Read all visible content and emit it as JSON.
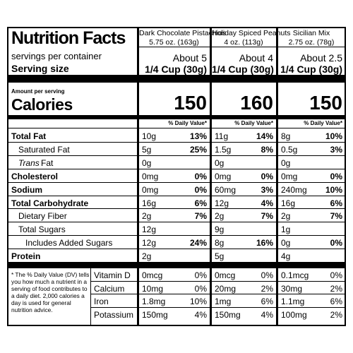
{
  "title": "Nutrition Facts",
  "servings_label": "servings per container",
  "serving_size_label": "Serving size",
  "amount_label": "Amount per serving",
  "calories_label": "Calories",
  "dv_header": "% Daily Value*",
  "products": [
    {
      "name": "Dark Chocolate Pistachios",
      "weight": "5.75 oz. (163g)",
      "servings": "About 5",
      "serving_size": "1/4 Cup (30g)",
      "calories": 150
    },
    {
      "name": "Holiday Spiced Peanuts",
      "weight": "4 oz. (113g)",
      "servings": "About 4",
      "serving_size": "1/4 Cup (30g)",
      "calories": 160
    },
    {
      "name": "Sicilian Mix",
      "weight": "2.75 oz. (78g)",
      "servings": "About 2.5",
      "serving_size": "1/4 Cup (30g)",
      "calories": 150
    }
  ],
  "nutrients": [
    {
      "label": "Total Fat",
      "bold": true,
      "indent": 0,
      "values": [
        [
          "10g",
          "13%"
        ],
        [
          "11g",
          "14%"
        ],
        [
          "8g",
          "10%"
        ]
      ]
    },
    {
      "label": "Saturated Fat",
      "bold": false,
      "indent": 1,
      "values": [
        [
          "5g",
          "25%"
        ],
        [
          "1.5g",
          "8%"
        ],
        [
          "0.5g",
          "3%"
        ]
      ]
    },
    {
      "prefix": "Trans",
      "label": "Fat",
      "bold": false,
      "indent": 1,
      "values": [
        [
          "0g"
        ],
        [
          "0g"
        ],
        [
          "0g"
        ]
      ]
    },
    {
      "label": "Cholesterol",
      "bold": true,
      "indent": 0,
      "values": [
        [
          "0mg",
          "0%"
        ],
        [
          "0mg",
          "0%"
        ],
        [
          "0mg",
          "0%"
        ]
      ]
    },
    {
      "label": "Sodium",
      "bold": true,
      "indent": 0,
      "values": [
        [
          "0mg",
          "0%"
        ],
        [
          "60mg",
          "3%"
        ],
        [
          "240mg",
          "10%"
        ]
      ]
    },
    {
      "label": "Total Carbohydrate",
      "bold": true,
      "indent": 0,
      "values": [
        [
          "16g",
          "6%"
        ],
        [
          "12g",
          "4%"
        ],
        [
          "16g",
          "6%"
        ]
      ]
    },
    {
      "label": "Dietary Fiber",
      "bold": false,
      "indent": 1,
      "values": [
        [
          "2g",
          "7%"
        ],
        [
          "2g",
          "7%"
        ],
        [
          "2g",
          "7%"
        ]
      ]
    },
    {
      "label": "Total Sugars",
      "bold": false,
      "indent": 1,
      "values": [
        [
          "12g"
        ],
        [
          "9g"
        ],
        [
          "1g"
        ]
      ]
    },
    {
      "label": "Includes Added Sugars",
      "bold": false,
      "indent": 2,
      "values": [
        [
          "12g",
          "24%"
        ],
        [
          "8g",
          "16%"
        ],
        [
          "0g",
          "0%"
        ]
      ]
    },
    {
      "label": "Protein",
      "bold": true,
      "indent": 0,
      "values": [
        [
          "2g"
        ],
        [
          "5g"
        ],
        [
          "4g"
        ]
      ]
    }
  ],
  "footnote": "* The % Daily Value (DV) tells you how much a nutrient in a serving of food contributes to a daily diet. 2,000 calories a day is used for general nutrition advice.",
  "micros": [
    {
      "label": "Vitamin D",
      "values": [
        [
          "0mcg",
          "0%"
        ],
        [
          "0mcg",
          "0%"
        ],
        [
          "0.1mcg",
          "0%"
        ]
      ]
    },
    {
      "label": "Calcium",
      "values": [
        [
          "10mg",
          "0%"
        ],
        [
          "20mg",
          "2%"
        ],
        [
          "30mg",
          "2%"
        ]
      ]
    },
    {
      "label": "Iron",
      "values": [
        [
          "1.8mg",
          "10%"
        ],
        [
          "1mg",
          "6%"
        ],
        [
          "1.1mg",
          "6%"
        ]
      ]
    },
    {
      "label": "Potassium",
      "values": [
        [
          "150mg",
          "4%"
        ],
        [
          "150mg",
          "4%"
        ],
        [
          "100mg",
          "2%"
        ]
      ]
    }
  ]
}
